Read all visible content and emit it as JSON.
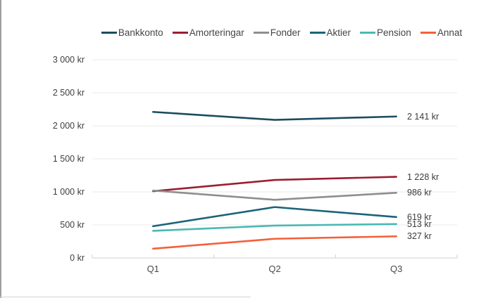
{
  "page": {
    "background": "#ffffff",
    "left_border_color": "#9e9e9e",
    "bottom_border_color": "#d4d4d4"
  },
  "chart_data": {
    "type": "line",
    "title": "",
    "categories": [
      "Q1",
      "Q2",
      "Q3"
    ],
    "series": [
      {
        "name": "Bankkonto",
        "color": "#1c4c5f",
        "values": [
          2210,
          2090,
          2141
        ],
        "end_label": "2 141 kr"
      },
      {
        "name": "Amorteringar",
        "color": "#9b1d31",
        "values": [
          1010,
          1180,
          1228
        ],
        "end_label": "1 228 kr"
      },
      {
        "name": "Fonder",
        "color": "#8e8e8e",
        "values": [
          1020,
          880,
          986
        ],
        "end_label": "986 kr"
      },
      {
        "name": "Aktier",
        "color": "#1a6478",
        "values": [
          480,
          770,
          619
        ],
        "end_label": "619 kr"
      },
      {
        "name": "Pension",
        "color": "#4bb8b3",
        "values": [
          410,
          490,
          513
        ],
        "end_label": "513 kr"
      },
      {
        "name": "Annat",
        "color": "#f4603a",
        "values": [
          140,
          290,
          327
        ],
        "end_label": "327 kr"
      }
    ],
    "y_ticks": [
      {
        "value": 0,
        "label": "0 kr"
      },
      {
        "value": 500,
        "label": "500 kr"
      },
      {
        "value": 1000,
        "label": "1 000 kr"
      },
      {
        "value": 1500,
        "label": "1 500 kr"
      },
      {
        "value": 2000,
        "label": "2 000 kr"
      },
      {
        "value": 2500,
        "label": "2 500 kr"
      },
      {
        "value": 3000,
        "label": "3 000 kr"
      }
    ],
    "ylim": [
      0,
      3000
    ],
    "xlabel": "",
    "ylabel": "",
    "currency": "kr",
    "grid": true,
    "legend_position": "top",
    "gridline_color": "#e9e9e9",
    "axis_line_color": "#d0d0d0"
  }
}
